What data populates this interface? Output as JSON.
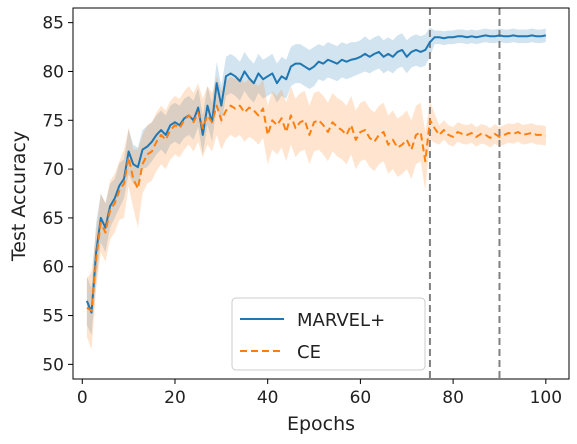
{
  "chart_data": {
    "type": "line",
    "xlabel": "Epochs",
    "ylabel": "Test Accuracy",
    "xlim": [
      -2,
      105
    ],
    "ylim": [
      48.5,
      86.5
    ],
    "xticks": [
      0,
      20,
      40,
      60,
      80,
      100
    ],
    "yticks": [
      50,
      55,
      60,
      65,
      70,
      75,
      80,
      85
    ],
    "grid": false,
    "legend_position": "lower-center",
    "vlines": [
      75,
      90
    ],
    "x": [
      1,
      2,
      3,
      4,
      5,
      6,
      7,
      8,
      9,
      10,
      11,
      12,
      13,
      14,
      15,
      16,
      17,
      18,
      19,
      20,
      21,
      22,
      23,
      24,
      25,
      26,
      27,
      28,
      29,
      30,
      31,
      32,
      33,
      34,
      35,
      36,
      37,
      38,
      39,
      40,
      41,
      42,
      43,
      44,
      45,
      46,
      47,
      48,
      49,
      50,
      51,
      52,
      53,
      54,
      55,
      56,
      57,
      58,
      59,
      60,
      61,
      62,
      63,
      64,
      65,
      66,
      67,
      68,
      69,
      70,
      71,
      72,
      73,
      74,
      75,
      76,
      77,
      78,
      79,
      80,
      81,
      82,
      83,
      84,
      85,
      86,
      87,
      88,
      89,
      90,
      91,
      92,
      93,
      94,
      95,
      96,
      97,
      98,
      99,
      100
    ],
    "series": [
      {
        "name": "MARVEL+",
        "color": "#1f77b4",
        "style": "solid",
        "values": [
          56.5,
          55.3,
          61.5,
          65.0,
          64.0,
          66.2,
          67.0,
          68.3,
          69.0,
          71.8,
          70.5,
          70.2,
          72.0,
          72.3,
          72.8,
          73.5,
          74.0,
          73.5,
          74.5,
          74.8,
          74.5,
          75.2,
          75.5,
          75.0,
          76.3,
          73.5,
          76.5,
          74.8,
          78.8,
          76.5,
          79.5,
          79.8,
          79.5,
          79.0,
          80.0,
          79.3,
          78.8,
          79.8,
          79.2,
          79.5,
          79.8,
          78.8,
          79.5,
          79.2,
          80.5,
          80.8,
          80.8,
          80.5,
          80.2,
          80.5,
          81.0,
          80.8,
          81.2,
          81.0,
          80.8,
          81.2,
          81.0,
          81.2,
          81.3,
          81.5,
          81.8,
          81.5,
          81.8,
          82.0,
          81.5,
          81.8,
          81.5,
          82.0,
          82.2,
          81.5,
          82.0,
          82.2,
          82.0,
          82.2,
          83.0,
          83.5,
          83.5,
          83.4,
          83.5,
          83.5,
          83.6,
          83.6,
          83.5,
          83.6,
          83.5,
          83.6,
          83.7,
          83.6,
          83.6,
          83.7,
          83.6,
          83.6,
          83.7,
          83.6,
          83.6,
          83.6,
          83.7,
          83.6,
          83.6,
          83.7
        ],
        "lower": [
          54.0,
          53.0,
          58.5,
          62.5,
          61.5,
          64.0,
          65.0,
          66.0,
          67.0,
          69.5,
          68.5,
          68.2,
          70.0,
          70.2,
          70.8,
          71.5,
          72.0,
          71.5,
          72.5,
          72.8,
          72.5,
          73.2,
          73.5,
          73.0,
          74.3,
          71.5,
          74.5,
          72.8,
          76.5,
          74.5,
          77.5,
          77.8,
          77.5,
          77.0,
          78.0,
          77.3,
          76.8,
          77.8,
          77.2,
          77.5,
          77.8,
          76.8,
          77.5,
          77.2,
          78.5,
          78.8,
          78.8,
          78.5,
          78.2,
          78.5,
          79.2,
          79.0,
          79.4,
          79.2,
          79.0,
          79.4,
          79.2,
          79.4,
          79.6,
          79.8,
          80.0,
          79.8,
          80.1,
          80.3,
          79.8,
          80.1,
          79.8,
          80.3,
          80.5,
          79.8,
          80.4,
          80.6,
          80.4,
          80.6,
          81.5,
          82.8,
          82.8,
          82.7,
          82.8,
          82.8,
          82.9,
          82.9,
          82.8,
          82.9,
          82.8,
          82.9,
          83.0,
          82.9,
          82.9,
          83.0,
          82.9,
          82.9,
          83.0,
          82.9,
          82.9,
          82.9,
          83.0,
          82.9,
          82.9,
          83.0
        ],
        "upper": [
          59.0,
          57.8,
          64.5,
          67.5,
          66.5,
          68.5,
          69.0,
          70.6,
          71.0,
          74.1,
          72.5,
          72.2,
          74.0,
          74.4,
          74.8,
          75.5,
          76.0,
          75.5,
          76.5,
          76.8,
          76.5,
          77.2,
          77.5,
          77.0,
          78.3,
          75.5,
          78.5,
          76.8,
          81.0,
          78.5,
          81.5,
          81.8,
          81.5,
          81.0,
          82.0,
          81.3,
          80.8,
          81.8,
          81.2,
          81.5,
          81.8,
          80.8,
          81.5,
          81.2,
          82.5,
          82.8,
          82.8,
          82.5,
          82.2,
          82.5,
          82.8,
          82.6,
          83.0,
          82.8,
          82.6,
          83.0,
          82.8,
          83.0,
          83.0,
          83.2,
          83.6,
          83.2,
          83.5,
          83.7,
          83.2,
          83.5,
          83.2,
          83.7,
          83.9,
          83.2,
          83.6,
          83.8,
          83.6,
          83.8,
          84.5,
          84.2,
          84.2,
          84.1,
          84.2,
          84.2,
          84.3,
          84.3,
          84.2,
          84.3,
          84.2,
          84.3,
          84.4,
          84.3,
          84.3,
          84.4,
          84.3,
          84.3,
          84.4,
          84.3,
          84.3,
          84.3,
          84.4,
          84.3,
          84.3,
          84.4
        ]
      },
      {
        "name": "CE",
        "color": "#ff7f0e",
        "style": "dashed",
        "values": [
          55.8,
          55.5,
          60.8,
          64.5,
          63.5,
          65.8,
          66.5,
          67.8,
          68.5,
          71.2,
          69.0,
          68.0,
          70.5,
          71.5,
          71.8,
          72.8,
          73.5,
          73.0,
          74.0,
          74.5,
          74.2,
          75.0,
          75.5,
          74.8,
          75.8,
          74.2,
          75.5,
          74.8,
          76.5,
          75.0,
          76.0,
          76.5,
          76.2,
          76.5,
          75.8,
          76.3,
          76.0,
          75.5,
          76.2,
          73.5,
          75.0,
          74.5,
          75.2,
          73.8,
          75.5,
          74.2,
          74.8,
          75.0,
          73.5,
          74.8,
          75.0,
          74.5,
          73.8,
          74.8,
          74.3,
          74.0,
          73.5,
          74.5,
          73.0,
          73.8,
          74.0,
          73.2,
          72.8,
          73.5,
          73.8,
          72.5,
          73.0,
          72.2,
          72.5,
          73.0,
          72.0,
          73.5,
          73.8,
          70.8,
          75.0,
          74.2,
          73.5,
          74.0,
          73.5,
          73.3,
          73.8,
          73.6,
          73.5,
          73.7,
          73.3,
          73.6,
          73.5,
          73.2,
          73.6,
          73.3,
          73.5,
          73.7,
          73.6,
          73.8,
          73.5,
          73.6,
          73.7,
          73.5,
          73.5,
          73.4
        ],
        "lower": [
          52.8,
          51.5,
          57.8,
          61.5,
          60.5,
          62.8,
          63.5,
          64.8,
          65.0,
          68.2,
          66.0,
          64.0,
          67.5,
          68.5,
          68.8,
          69.8,
          70.5,
          70.0,
          71.0,
          71.5,
          71.2,
          72.0,
          72.5,
          71.8,
          72.8,
          71.2,
          72.5,
          71.8,
          73.5,
          72.0,
          73.0,
          73.5,
          73.2,
          73.5,
          72.8,
          73.3,
          73.0,
          72.5,
          73.2,
          70.5,
          72.0,
          71.5,
          72.2,
          70.8,
          72.5,
          71.2,
          71.8,
          72.0,
          70.5,
          71.8,
          72.0,
          71.5,
          70.8,
          71.8,
          71.3,
          71.0,
          70.5,
          71.5,
          70.0,
          70.8,
          71.0,
          70.2,
          69.8,
          70.5,
          70.8,
          69.5,
          70.0,
          69.2,
          69.5,
          70.0,
          69.0,
          70.5,
          70.8,
          67.8,
          73.0,
          72.7,
          72.5,
          73.0,
          72.5,
          72.3,
          72.8,
          72.6,
          72.5,
          72.7,
          72.3,
          72.6,
          72.5,
          72.2,
          72.6,
          72.3,
          72.5,
          72.7,
          72.6,
          72.8,
          72.5,
          72.6,
          72.7,
          72.5,
          72.5,
          72.4
        ],
        "upper": [
          58.8,
          59.5,
          63.8,
          67.5,
          66.5,
          68.8,
          69.5,
          70.8,
          72.0,
          74.2,
          72.0,
          72.0,
          73.5,
          74.5,
          74.8,
          75.8,
          76.5,
          76.0,
          77.0,
          77.5,
          77.2,
          78.0,
          78.5,
          77.8,
          78.8,
          77.2,
          78.5,
          77.8,
          79.5,
          78.0,
          79.0,
          79.5,
          79.2,
          79.5,
          78.8,
          79.3,
          79.0,
          78.5,
          79.2,
          76.5,
          78.0,
          77.5,
          78.2,
          76.8,
          78.5,
          77.2,
          77.8,
          78.0,
          76.5,
          77.8,
          78.0,
          77.5,
          76.8,
          77.8,
          77.3,
          77.0,
          76.5,
          77.5,
          76.0,
          76.8,
          77.0,
          76.2,
          75.8,
          76.5,
          76.8,
          75.5,
          76.0,
          75.2,
          75.5,
          76.0,
          75.0,
          76.5,
          76.8,
          73.8,
          77.0,
          75.7,
          74.5,
          75.0,
          74.5,
          74.3,
          74.8,
          74.6,
          74.5,
          74.7,
          74.3,
          74.6,
          74.5,
          74.2,
          74.6,
          74.3,
          74.5,
          74.7,
          74.6,
          74.8,
          74.5,
          74.6,
          74.7,
          74.5,
          74.5,
          74.4
        ]
      }
    ]
  }
}
